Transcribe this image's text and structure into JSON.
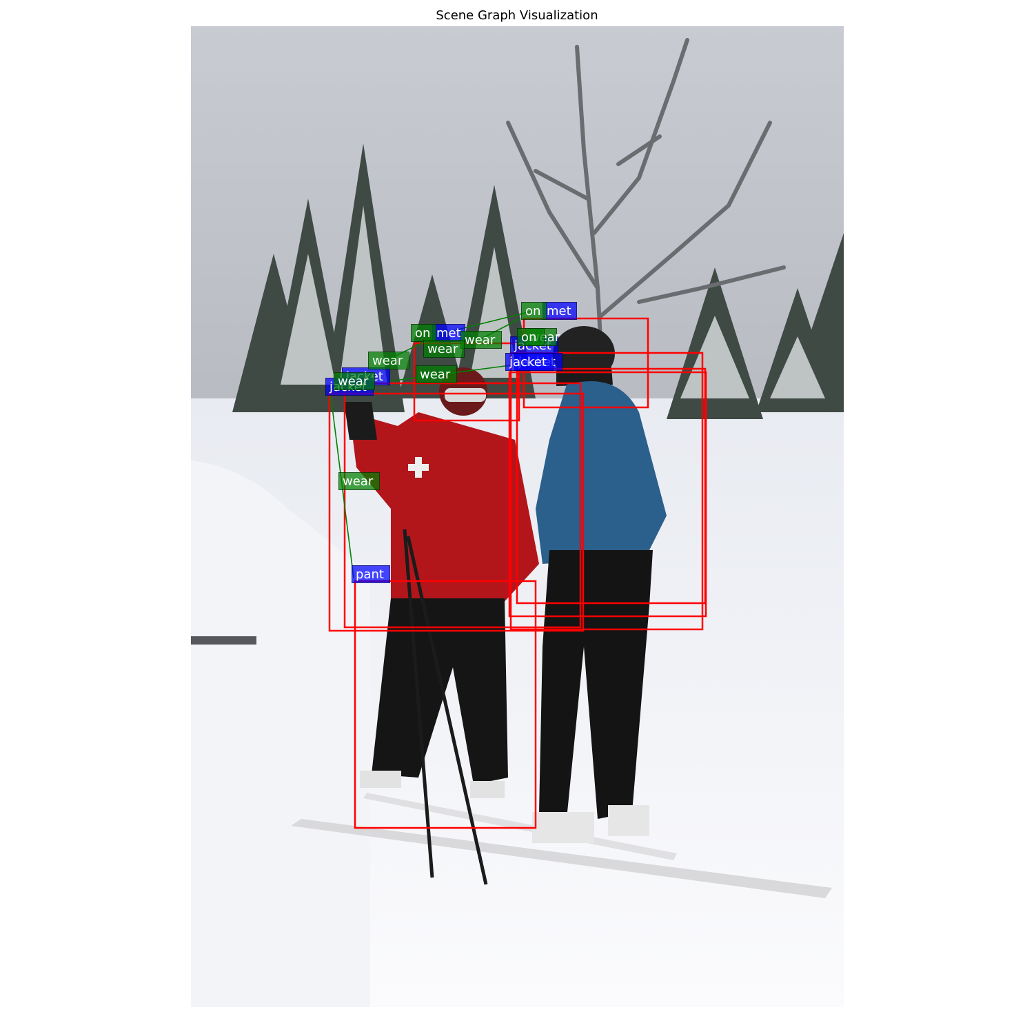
{
  "title": "Scene Graph Visualization",
  "colors": {
    "box": "#ff0000",
    "object_label": "#0000ff",
    "relation_label": "#008000",
    "edge": "#008000"
  },
  "labels": {
    "helmet_1": "met",
    "helmet_2": "met",
    "jacket_1": "jacket",
    "jacket_2": "jacket",
    "jacket_3": "jacket",
    "jacket_4": "jacket",
    "jacket_5": "jacket",
    "pant": "pant",
    "on_1": "on",
    "on_2": "on",
    "on_3": "on",
    "wear_1": "wear",
    "wear_2": "wear",
    "wear_3": "wear",
    "wear_4": "wear",
    "wear_5": "wear",
    "wear_6": "wear",
    "wear_7": "wear"
  }
}
